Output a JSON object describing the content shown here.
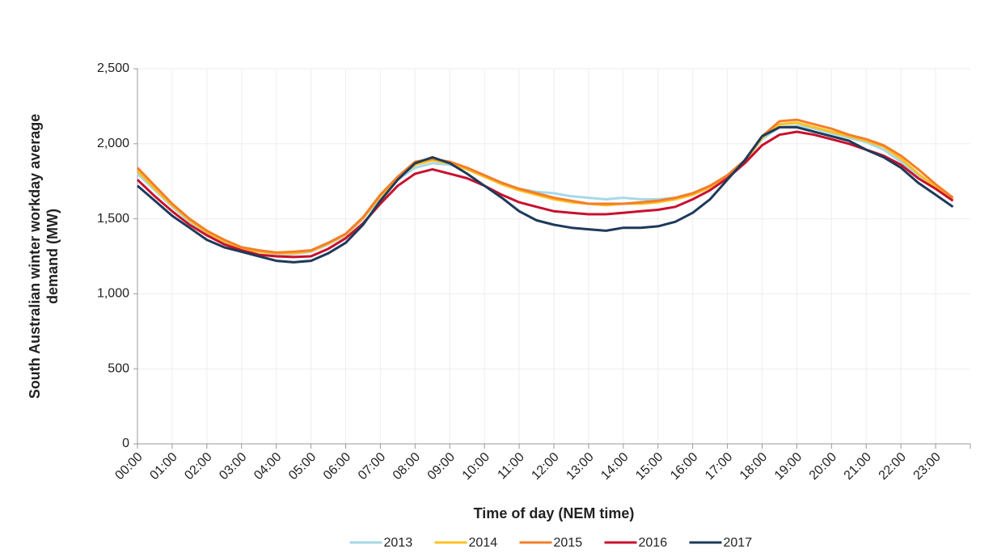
{
  "chart_data": {
    "type": "line",
    "x_label": "Time of day (NEM time)",
    "y_label": [
      "South Australian winter workday average",
      "demand (MW)"
    ],
    "categories": [
      "00:00",
      null,
      "01:00",
      null,
      "02:00",
      null,
      "03:00",
      null,
      "04:00",
      null,
      "05:00",
      null,
      "06:00",
      null,
      "07:00",
      null,
      "08:00",
      null,
      "09:00",
      null,
      "10:00",
      null,
      "11:00",
      null,
      "12:00",
      null,
      "13:00",
      null,
      "14:00",
      null,
      "15:00",
      null,
      "16:00",
      null,
      "17:00",
      null,
      "18:00",
      null,
      "19:00",
      null,
      "20:00",
      null,
      "21:00",
      null,
      "22:00",
      null,
      "23:00",
      null
    ],
    "series": [
      {
        "name": "2013",
        "color": "#a6d9e8",
        "values": [
          1800,
          1690,
          1580,
          1480,
          1400,
          1340,
          1300,
          1280,
          1265,
          1265,
          1280,
          1330,
          1390,
          1500,
          1640,
          1760,
          1840,
          1870,
          1860,
          1830,
          1780,
          1740,
          1700,
          1680,
          1670,
          1650,
          1640,
          1630,
          1640,
          1630,
          1630,
          1640,
          1660,
          1710,
          1780,
          1880,
          2030,
          2110,
          2120,
          2100,
          2070,
          2040,
          2010,
          1960,
          1880,
          1790,
          1720,
          1640
        ]
      },
      {
        "name": "2014",
        "color": "#fdc020",
        "values": [
          1820,
          1700,
          1590,
          1490,
          1410,
          1350,
          1300,
          1280,
          1270,
          1270,
          1285,
          1335,
          1395,
          1505,
          1650,
          1770,
          1860,
          1890,
          1870,
          1830,
          1780,
          1730,
          1690,
          1660,
          1630,
          1610,
          1600,
          1590,
          1600,
          1600,
          1610,
          1630,
          1660,
          1710,
          1780,
          1880,
          2040,
          2130,
          2140,
          2110,
          2080,
          2050,
          2020,
          1980,
          1900,
          1800,
          1710,
          1630
        ]
      },
      {
        "name": "2015",
        "color": "#f37e2a",
        "values": [
          1840,
          1720,
          1600,
          1500,
          1420,
          1360,
          1310,
          1290,
          1275,
          1280,
          1290,
          1340,
          1400,
          1510,
          1660,
          1780,
          1880,
          1900,
          1880,
          1840,
          1790,
          1740,
          1700,
          1670,
          1640,
          1620,
          1600,
          1600,
          1600,
          1610,
          1620,
          1640,
          1670,
          1720,
          1790,
          1890,
          2050,
          2150,
          2160,
          2130,
          2100,
          2060,
          2030,
          1990,
          1920,
          1830,
          1730,
          1640
        ]
      },
      {
        "name": "2016",
        "color": "#c8102e",
        "values": [
          1760,
          1650,
          1550,
          1460,
          1390,
          1330,
          1290,
          1260,
          1250,
          1245,
          1250,
          1300,
          1370,
          1470,
          1600,
          1720,
          1800,
          1830,
          1800,
          1770,
          1720,
          1660,
          1610,
          1580,
          1550,
          1540,
          1530,
          1530,
          1540,
          1550,
          1560,
          1580,
          1630,
          1690,
          1770,
          1870,
          1990,
          2060,
          2080,
          2060,
          2030,
          2000,
          1960,
          1920,
          1860,
          1770,
          1700,
          1620
        ]
      },
      {
        "name": "2017",
        "color": "#1d3a5a",
        "values": [
          1720,
          1620,
          1520,
          1440,
          1360,
          1310,
          1280,
          1250,
          1220,
          1210,
          1220,
          1270,
          1340,
          1460,
          1620,
          1760,
          1870,
          1910,
          1870,
          1800,
          1720,
          1640,
          1550,
          1490,
          1460,
          1440,
          1430,
          1420,
          1440,
          1440,
          1450,
          1480,
          1540,
          1630,
          1760,
          1890,
          2050,
          2110,
          2110,
          2080,
          2050,
          2020,
          1960,
          1910,
          1840,
          1740,
          1660,
          1580
        ]
      }
    ],
    "ylim": [
      0,
      2500
    ],
    "yticks": [
      0,
      500,
      {
        "value": 1000,
        "label": "1,000"
      },
      {
        "value": 1500,
        "label": "1,500"
      },
      {
        "value": 2000,
        "label": "2,000"
      },
      {
        "value": 2500,
        "label": "2,500"
      }
    ],
    "grid": true,
    "legend": "bottom"
  }
}
